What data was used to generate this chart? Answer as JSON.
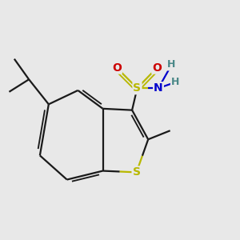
{
  "bg_color": "#e8e8e8",
  "bond_color": "#1a1a1a",
  "bond_lw": 1.6,
  "S_ring_color": "#b8b800",
  "S_sulfonamide_color": "#b8b800",
  "N_color": "#0000cc",
  "O_color": "#cc0000",
  "H_color": "#4a8888",
  "figsize": [
    3.0,
    3.0
  ],
  "dpi": 100,
  "xlim": [
    -2.2,
    2.8
  ],
  "ylim": [
    -2.0,
    2.2
  ]
}
